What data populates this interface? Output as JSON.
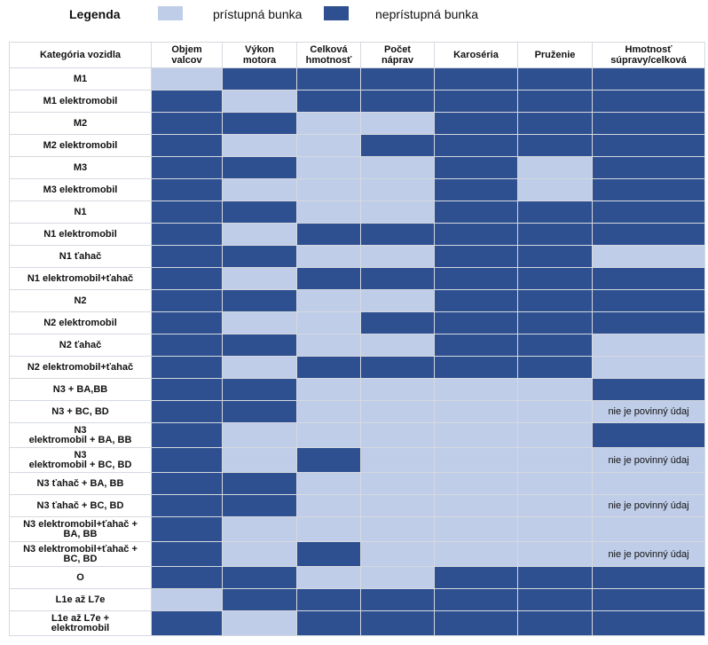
{
  "legend": {
    "title": "Legenda",
    "accessible_label": "prístupná bunka",
    "inaccessible_label": "neprístupná bunka",
    "accessible_color": "#bfcde9",
    "inaccessible_color": "#2e4f90"
  },
  "table": {
    "headers": [
      "Kategória vozidla",
      "Objem\nvalcov",
      "Výkon\nmotora",
      "Celková\nhmotnosť",
      "Počet\nnáprav",
      "Karoséria",
      "Pruženie",
      "Hmotnosť\nsúpravy/celková"
    ],
    "rows": [
      {
        "label": "M1",
        "cells": [
          "a",
          "n",
          "n",
          "n",
          "n",
          "n",
          "n"
        ],
        "notes": [
          "",
          "",
          "",
          "",
          "",
          "",
          ""
        ]
      },
      {
        "label": "M1 elektromobil",
        "cells": [
          "n",
          "a",
          "n",
          "n",
          "n",
          "n",
          "n"
        ],
        "notes": [
          "",
          "",
          "",
          "",
          "",
          "",
          ""
        ]
      },
      {
        "label": "M2",
        "cells": [
          "n",
          "n",
          "a",
          "a",
          "n",
          "n",
          "n"
        ],
        "notes": [
          "",
          "",
          "",
          "",
          "",
          "",
          ""
        ]
      },
      {
        "label": "M2 elektromobil",
        "cells": [
          "n",
          "a",
          "a",
          "n",
          "n",
          "n",
          "n"
        ],
        "notes": [
          "",
          "",
          "",
          "",
          "",
          "",
          ""
        ]
      },
      {
        "label": "M3",
        "cells": [
          "n",
          "n",
          "a",
          "a",
          "n",
          "a",
          "n"
        ],
        "notes": [
          "",
          "",
          "",
          "",
          "",
          "",
          ""
        ]
      },
      {
        "label": "M3 elektromobil",
        "cells": [
          "n",
          "a",
          "a",
          "a",
          "n",
          "a",
          "n"
        ],
        "notes": [
          "",
          "",
          "",
          "",
          "",
          "",
          ""
        ]
      },
      {
        "label": "N1",
        "cells": [
          "n",
          "n",
          "a",
          "a",
          "n",
          "n",
          "n"
        ],
        "notes": [
          "",
          "",
          "",
          "",
          "",
          "",
          ""
        ]
      },
      {
        "label": "N1 elektromobil",
        "cells": [
          "n",
          "a",
          "n",
          "n",
          "n",
          "n",
          "n"
        ],
        "notes": [
          "",
          "",
          "",
          "",
          "",
          "",
          ""
        ]
      },
      {
        "label": "N1 ťahač",
        "cells": [
          "n",
          "n",
          "a",
          "a",
          "n",
          "n",
          "a"
        ],
        "notes": [
          "",
          "",
          "",
          "",
          "",
          "",
          ""
        ]
      },
      {
        "label": "N1 elektromobil+ťahač",
        "cells": [
          "n",
          "a",
          "n",
          "n",
          "n",
          "n",
          "n"
        ],
        "notes": [
          "",
          "",
          "",
          "",
          "",
          "",
          ""
        ]
      },
      {
        "label": "N2",
        "cells": [
          "n",
          "n",
          "a",
          "a",
          "n",
          "n",
          "n"
        ],
        "notes": [
          "",
          "",
          "",
          "",
          "",
          "",
          ""
        ]
      },
      {
        "label": "N2 elektromobil",
        "cells": [
          "n",
          "a",
          "a",
          "n",
          "n",
          "n",
          "n"
        ],
        "notes": [
          "",
          "",
          "",
          "",
          "",
          "",
          ""
        ]
      },
      {
        "label": "N2 ťahač",
        "cells": [
          "n",
          "n",
          "a",
          "a",
          "n",
          "n",
          "a"
        ],
        "notes": [
          "",
          "",
          "",
          "",
          "",
          "",
          ""
        ]
      },
      {
        "label": "N2 elektromobil+ťahač",
        "cells": [
          "n",
          "a",
          "n",
          "n",
          "n",
          "n",
          "a"
        ],
        "notes": [
          "",
          "",
          "",
          "",
          "",
          "",
          ""
        ]
      },
      {
        "label": "N3 + BA,BB",
        "cells": [
          "n",
          "n",
          "a",
          "a",
          "a",
          "a",
          "n"
        ],
        "notes": [
          "",
          "",
          "",
          "",
          "",
          "",
          ""
        ]
      },
      {
        "label": "N3 + BC, BD",
        "cells": [
          "n",
          "n",
          "a",
          "a",
          "a",
          "a",
          "a"
        ],
        "notes": [
          "",
          "",
          "",
          "",
          "",
          "",
          "nie je povinný údaj"
        ]
      },
      {
        "label": "N3\nelektromobil + BA, BB",
        "cells": [
          "n",
          "a",
          "a",
          "a",
          "a",
          "a",
          "n"
        ],
        "notes": [
          "",
          "",
          "",
          "",
          "",
          "",
          ""
        ]
      },
      {
        "label": "N3\nelektromobil + BC, BD",
        "cells": [
          "n",
          "a",
          "n",
          "a",
          "a",
          "a",
          "a"
        ],
        "notes": [
          "",
          "",
          "",
          "",
          "",
          "",
          "nie je povinný údaj"
        ]
      },
      {
        "label": "N3 ťahač + BA, BB",
        "cells": [
          "n",
          "n",
          "a",
          "a",
          "a",
          "a",
          "a"
        ],
        "notes": [
          "",
          "",
          "",
          "",
          "",
          "",
          ""
        ]
      },
      {
        "label": "N3 ťahač + BC, BD",
        "cells": [
          "n",
          "n",
          "a",
          "a",
          "a",
          "a",
          "a"
        ],
        "notes": [
          "",
          "",
          "",
          "",
          "",
          "",
          "nie je povinný údaj"
        ]
      },
      {
        "label": "N3 elektromobil+ťahač +\nBA, BB",
        "cells": [
          "n",
          "a",
          "a",
          "a",
          "a",
          "a",
          "a"
        ],
        "notes": [
          "",
          "",
          "",
          "",
          "",
          "",
          ""
        ]
      },
      {
        "label": "N3 elektromobil+ťahač +\nBC, BD",
        "cells": [
          "n",
          "a",
          "n",
          "a",
          "a",
          "a",
          "a"
        ],
        "notes": [
          "",
          "",
          "",
          "",
          "",
          "",
          "nie je povinný údaj"
        ]
      },
      {
        "label": "O",
        "cells": [
          "n",
          "n",
          "a",
          "a",
          "n",
          "n",
          "n"
        ],
        "notes": [
          "",
          "",
          "",
          "",
          "",
          "",
          ""
        ]
      },
      {
        "label": "L1e až L7e",
        "cells": [
          "a",
          "n",
          "n",
          "n",
          "n",
          "n",
          "n"
        ],
        "notes": [
          "",
          "",
          "",
          "",
          "",
          "",
          ""
        ]
      },
      {
        "label": "L1e až L7e +\nelektromobil",
        "cells": [
          "n",
          "a",
          "n",
          "n",
          "n",
          "n",
          "n"
        ],
        "notes": [
          "",
          "",
          "",
          "",
          "",
          "",
          ""
        ]
      }
    ]
  }
}
